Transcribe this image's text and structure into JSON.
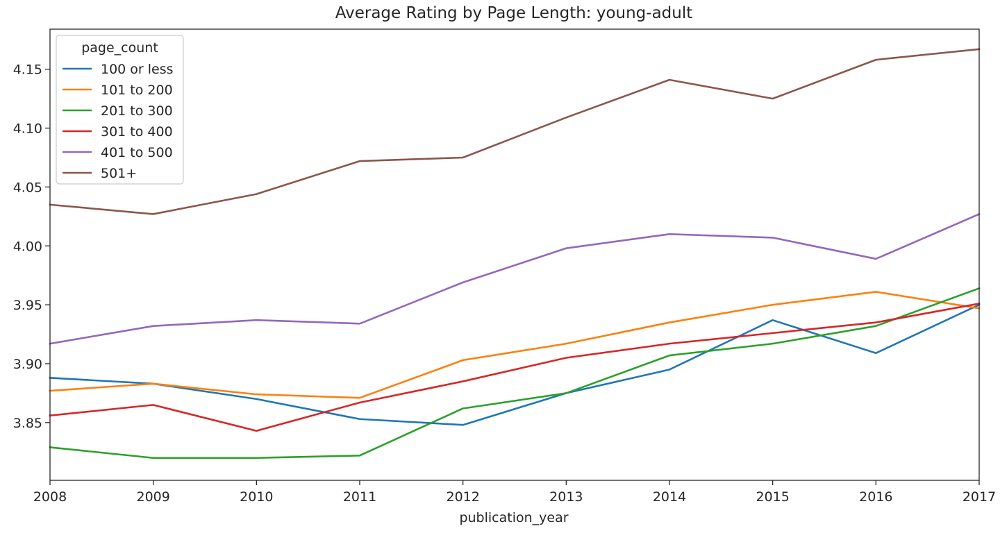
{
  "chart_data": {
    "type": "line",
    "title": "Average Rating by Page Length: young-adult",
    "xlabel": "publication_year",
    "ylabel": "",
    "x": [
      2008,
      2009,
      2010,
      2011,
      2012,
      2013,
      2014,
      2015,
      2016,
      2017
    ],
    "xlim": [
      2008,
      2017
    ],
    "ylim": [
      3.801,
      4.184
    ],
    "yticks": [
      3.85,
      3.9,
      3.95,
      4.0,
      4.05,
      4.1,
      4.15
    ],
    "ytick_labels": [
      "3.85",
      "3.90",
      "3.95",
      "4.00",
      "4.05",
      "4.10",
      "4.15"
    ],
    "xtick_labels": [
      "2008",
      "2009",
      "2010",
      "2011",
      "2012",
      "2013",
      "2014",
      "2015",
      "2016",
      "2017"
    ],
    "grid": false,
    "legend": {
      "title": "page_count",
      "position": "top-left"
    },
    "series": [
      {
        "name": "100 or less",
        "color": "#1f77b4",
        "values": [
          3.888,
          3.883,
          3.87,
          3.853,
          3.848,
          3.875,
          3.895,
          3.937,
          3.909,
          3.95
        ]
      },
      {
        "name": "101 to 200",
        "color": "#ff7f0e",
        "values": [
          3.877,
          3.883,
          3.874,
          3.871,
          3.903,
          3.917,
          3.935,
          3.95,
          3.961,
          3.947
        ]
      },
      {
        "name": "201 to 300",
        "color": "#2ca02c",
        "values": [
          3.829,
          3.82,
          3.82,
          3.822,
          3.862,
          3.875,
          3.907,
          3.917,
          3.932,
          3.964
        ]
      },
      {
        "name": "301 to 400",
        "color": "#d62728",
        "values": [
          3.856,
          3.865,
          3.843,
          3.867,
          3.885,
          3.905,
          3.917,
          3.926,
          3.935,
          3.951
        ]
      },
      {
        "name": "401 to 500",
        "color": "#9467bd",
        "values": [
          3.917,
          3.932,
          3.937,
          3.934,
          3.969,
          3.998,
          4.01,
          4.007,
          3.989,
          4.027
        ]
      },
      {
        "name": "501+",
        "color": "#8c564b",
        "values": [
          4.035,
          4.027,
          4.044,
          4.072,
          4.075,
          4.109,
          4.141,
          4.125,
          4.158,
          4.167
        ]
      }
    ]
  }
}
